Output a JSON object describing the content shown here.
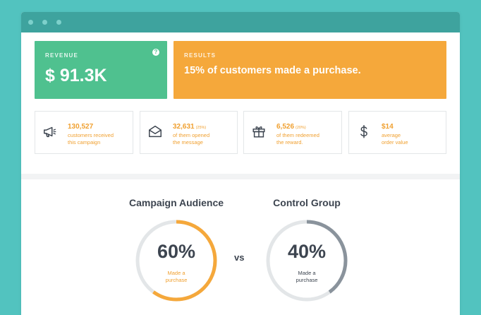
{
  "colors": {
    "background": "#52c3bf",
    "titlebar": "#3ea39e",
    "revenue": "#4fc18f",
    "results": "#f5a83b",
    "accent_orange": "#f0a030",
    "ring_track": "#e3e6e8",
    "ring_control": "#8a939c",
    "text_dark": "#3d4550"
  },
  "revenue": {
    "kicker": "REVENUE",
    "value": "$ 91.3K",
    "help_icon": "question-icon",
    "help_glyph": "?"
  },
  "results": {
    "kicker": "RESULTS",
    "value": "15% of customers made a purchase."
  },
  "stats": [
    {
      "icon": "megaphone-icon",
      "value": "130,527",
      "percent": "",
      "line1": "customers received",
      "line2": "this campaign"
    },
    {
      "icon": "envelope-icon",
      "value": "32,631",
      "percent": "(25%)",
      "line1": "of them opened",
      "line2": "the message"
    },
    {
      "icon": "gift-icon",
      "value": "6,526",
      "percent": "(20%)",
      "line1": "of them redeemed",
      "line2": "the reward."
    },
    {
      "icon": "dollar-icon",
      "value": "$14",
      "percent": "",
      "line1": "average",
      "line2": "order value"
    }
  ],
  "comparison": {
    "vs_label": "vs",
    "campaign": {
      "title": "Campaign Audience",
      "percent_label": "60%",
      "value": 0.6,
      "caption_line1": "Made a",
      "caption_line2": "purchase"
    },
    "control": {
      "title": "Control Group",
      "percent_label": "40%",
      "value": 0.4,
      "caption_line1": "Made a",
      "caption_line2": "purchase"
    }
  }
}
